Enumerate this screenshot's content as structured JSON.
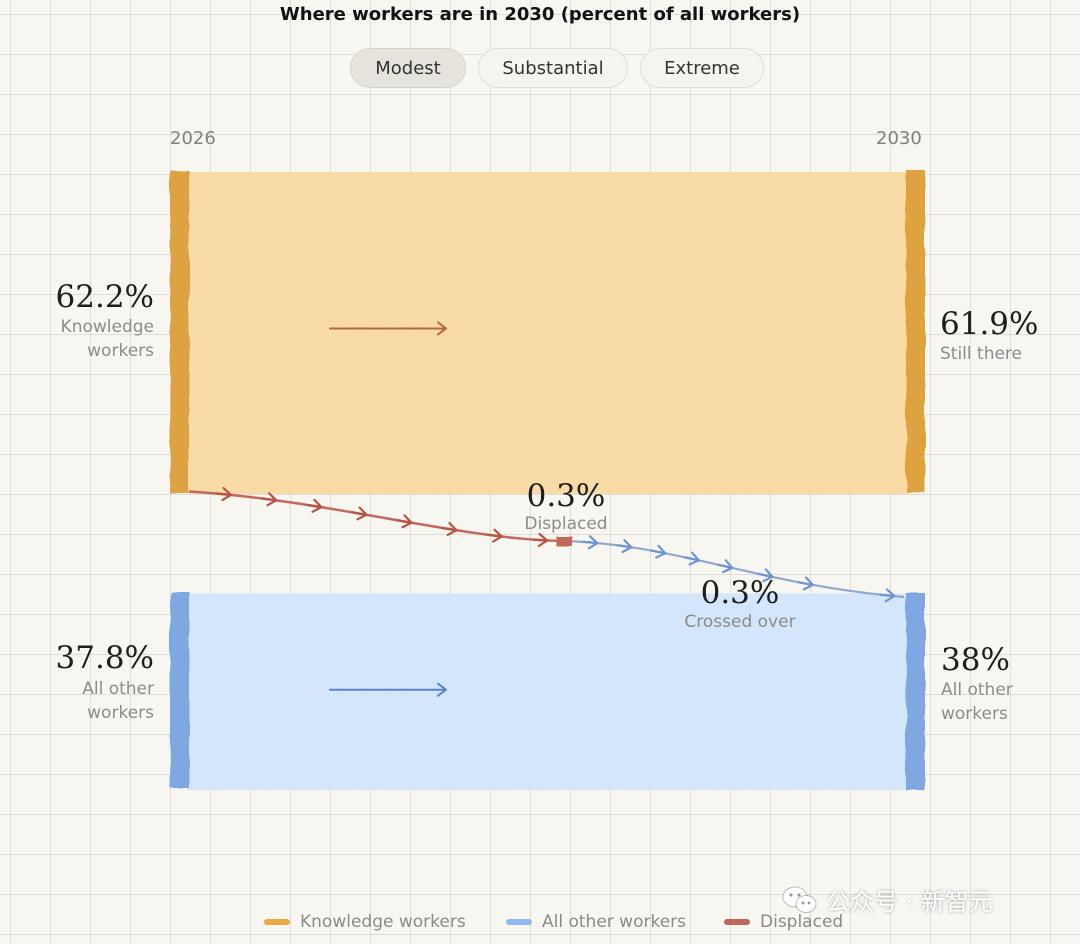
{
  "chart_title": "Where workers are in 2030 (percent of all workers)",
  "tabs": [
    {
      "label": "Modest",
      "active": true
    },
    {
      "label": "Substantial",
      "active": false
    },
    {
      "label": "Extreme",
      "active": false
    }
  ],
  "colors": {
    "knowledge": "#e8a940",
    "other": "#7da6e0",
    "displaced": "#b85446"
  },
  "chart_data": {
    "type": "sankey",
    "x": [
      "2026",
      "2030"
    ],
    "nodes_left": [
      {
        "value": 62.2,
        "value_label": "62.2%",
        "label": "Knowledge workers",
        "label_lines": [
          "Knowledge",
          "workers"
        ]
      },
      {
        "value": 37.8,
        "value_label": "37.8%",
        "label": "All other workers",
        "label_lines": [
          "All other",
          "workers"
        ]
      }
    ],
    "nodes_right": [
      {
        "value": 61.9,
        "value_label": "61.9%",
        "label": "Still there",
        "label_lines": [
          "Still there"
        ]
      },
      {
        "value": 38,
        "value_label": "38%",
        "label": "All other workers",
        "label_lines": [
          "All other",
          "workers"
        ]
      }
    ],
    "flows": [
      {
        "value": 0.3,
        "value_label": "0.3%",
        "label": "Displaced"
      },
      {
        "value": 0.3,
        "value_label": "0.3%",
        "label": "Crossed over"
      }
    ],
    "legend": [
      {
        "label": "Knowledge workers",
        "color": "#e8a940"
      },
      {
        "label": "All other workers",
        "color": "#8eb8ee"
      },
      {
        "label": "Displaced",
        "color": "#c0675a"
      }
    ]
  },
  "watermark": {
    "text": "公众号 · 新智元",
    "icon": "wechat-icon"
  }
}
